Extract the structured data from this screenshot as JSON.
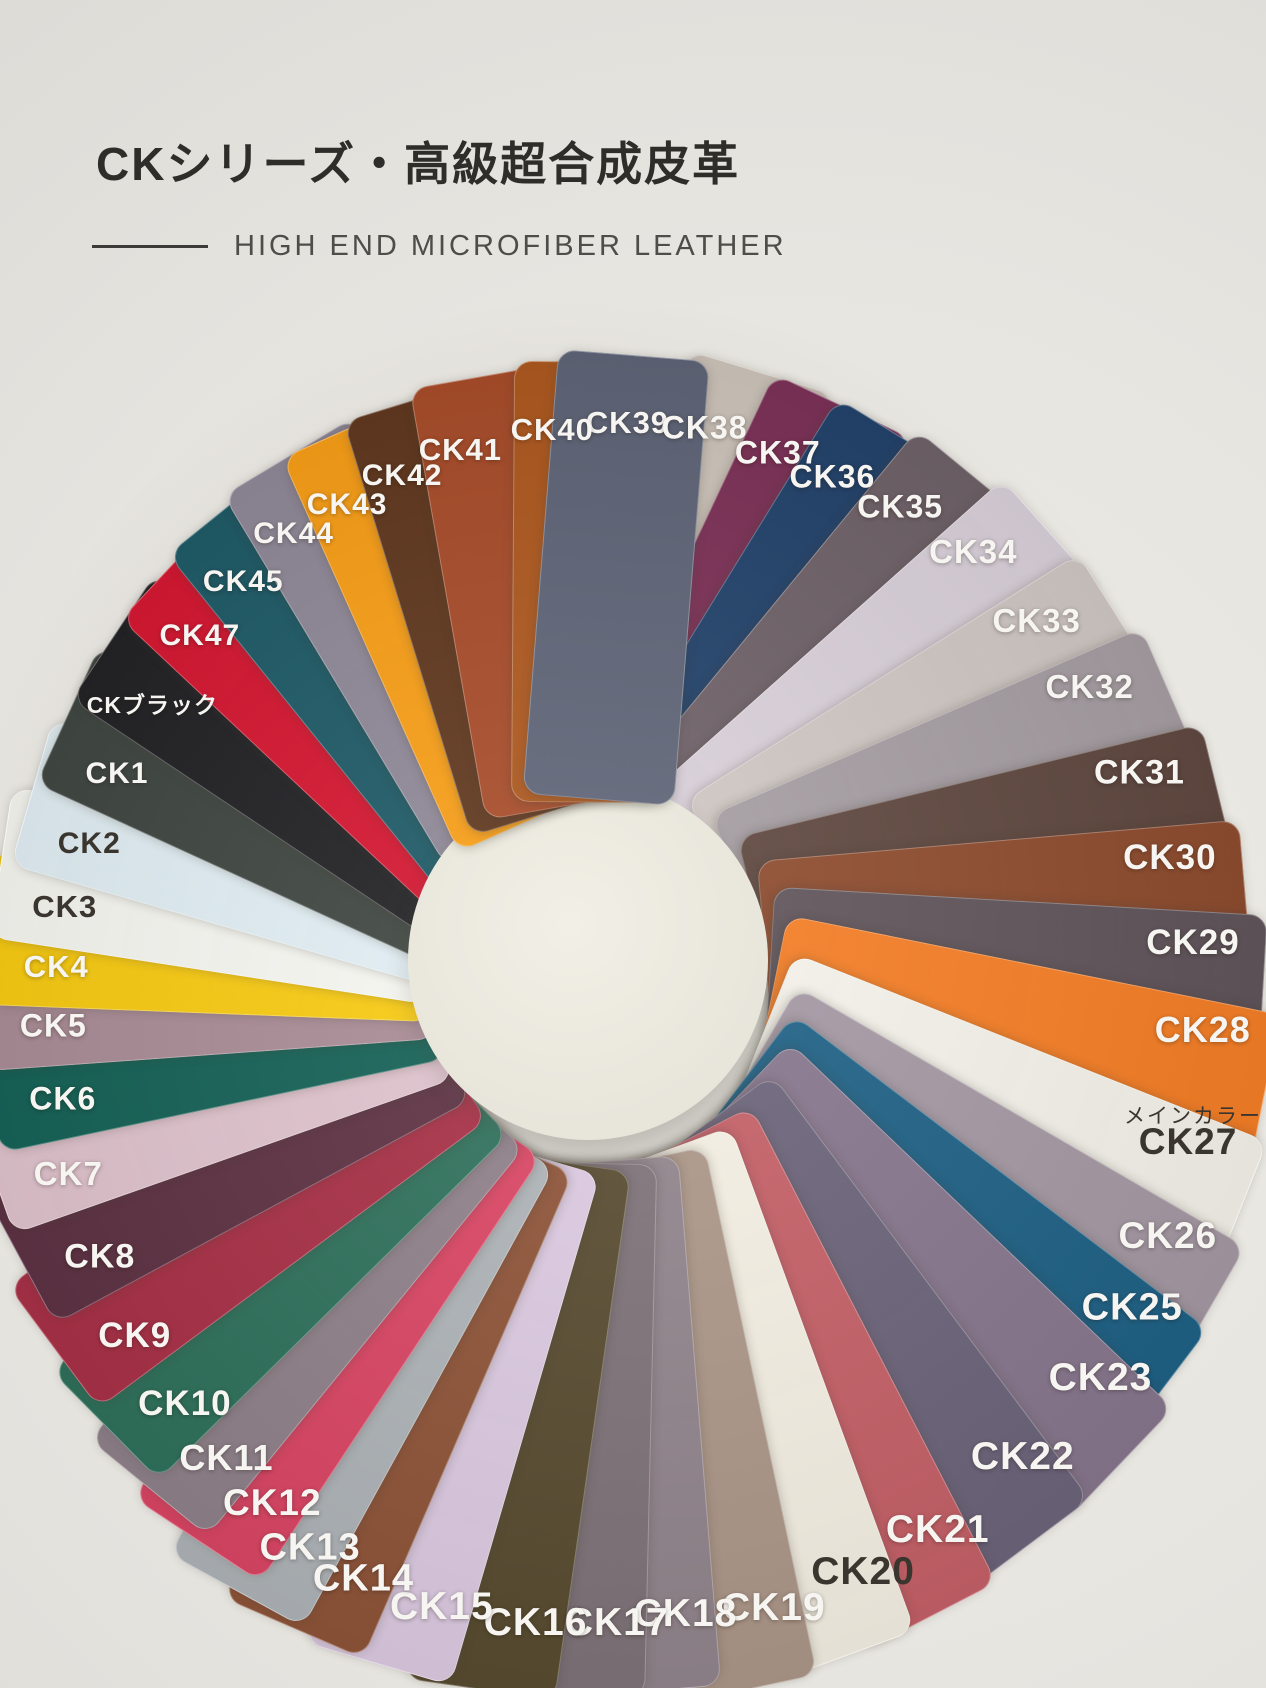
{
  "header": {
    "title": "CKシリーズ・高級超合成皮革",
    "subtitle": "HIGH END MICROFIBER LEATHER"
  },
  "fan": {
    "main_color_tag": {
      "text": "メインカラー",
      "angle": 105.2,
      "radius": 630
    },
    "swatches": [
      {
        "label": "CK39",
        "color": "#5e6476",
        "angle": 4.6,
        "radius": 529
      },
      {
        "label": "CK38",
        "color": "#cbc2b8",
        "angle": 12.9,
        "radius": 536
      },
      {
        "label": "CK37",
        "color": "#7b3156",
        "angle": 21.2,
        "radius": 533
      },
      {
        "label": "CK36",
        "color": "#23426a",
        "angle": 27.6,
        "radius": 534
      },
      {
        "label": "CK35",
        "color": "#6e6168",
        "angle": 35.4,
        "radius": 544
      },
      {
        "label": "CK34",
        "color": "#d7ced7",
        "angle": 44.3,
        "radius": 556
      },
      {
        "label": "CK33",
        "color": "#cdc5c1",
        "angle": 53.9,
        "radius": 559
      },
      {
        "label": "CK32",
        "color": "#a49ca1",
        "angle": 62.5,
        "radius": 569
      },
      {
        "label": "CK31",
        "color": "#5f4840",
        "angle": 72.3,
        "radius": 582
      },
      {
        "label": "CK30",
        "color": "#8d4c2f",
        "angle": 81.1,
        "radius": 592
      },
      {
        "label": "CK29",
        "color": "#5f545a",
        "angle": 89.3,
        "radius": 608
      },
      {
        "label": "CK28",
        "color": "#f27d26",
        "angle": 97.4,
        "radius": 623
      },
      {
        "label": "CK27",
        "color": "#f1efe7",
        "dark": true,
        "angle": 107.7,
        "radius": 633
      },
      {
        "label": "CK26",
        "color": "#a397a2",
        "angle": 116.1,
        "radius": 649
      },
      {
        "label": "CK25",
        "color": "#1f6084",
        "angle": 123.2,
        "radius": 654
      },
      {
        "label": "CK23",
        "color": "#86758c",
        "angle": 129.7,
        "radius": 670
      },
      {
        "label": "CK22",
        "color": "#6b6379",
        "angle": 139.2,
        "radius": 670
      },
      {
        "label": "CK21",
        "color": "#c25f66",
        "angle": 148.7,
        "radius": 679
      },
      {
        "label": "CK20",
        "color": "#f1ece0",
        "dark": true,
        "angle": 155.9,
        "radius": 681
      },
      {
        "label": "CK19",
        "color": "#aa9587",
        "angle": 164.0,
        "radius": 685
      },
      {
        "label": "CK18",
        "color": "#90838b",
        "angle": 171.4,
        "radius": 672
      },
      {
        "label": "CK17",
        "color": "#7c7177",
        "angle": 177.3,
        "radius": 674
      },
      {
        "label": "CK16",
        "color": "#574b30",
        "angle": 184.2,
        "radius": 675
      },
      {
        "label": "CK15",
        "color": "#d9c7de",
        "angle": 192.3,
        "radius": 672
      },
      {
        "label": "CK14",
        "color": "#8c5338",
        "angle": 199.4,
        "radius": 667
      },
      {
        "label": "CK13",
        "color": "#acb1b5",
        "angle": 204.7,
        "radius": 658
      },
      {
        "label": "CK12",
        "color": "#d74563",
        "angle": 209.5,
        "radius": 635
      },
      {
        "label": "CK11",
        "color": "#8d7f88",
        "angle": 215.2,
        "radius": 622
      },
      {
        "label": "CK10",
        "color": "#2f705b",
        "angle": 221.4,
        "radius": 605
      },
      {
        "label": "CK9",
        "color": "#a63046",
        "angle": 229.4,
        "radius": 593
      },
      {
        "label": "CK8",
        "color": "#5d3243",
        "angle": 237.7,
        "radius": 574
      },
      {
        "label": "CK7",
        "color": "#ddc1cb",
        "angle": 246.6,
        "radius": 563
      },
      {
        "label": "CK6",
        "color": "#166156",
        "angle": 254.1,
        "radius": 543
      },
      {
        "label": "CK5",
        "color": "#a88b95",
        "angle": 261.9,
        "radius": 537
      },
      {
        "label": "CK4",
        "color": "#f6c913",
        "angle": 268.2,
        "radius": 529
      },
      {
        "label": "CK3",
        "color": "#f4f4ef",
        "dark": true,
        "angle": 274.7,
        "radius": 522
      },
      {
        "label": "CK2",
        "color": "#dfecf1",
        "dark": true,
        "angle": 282.1,
        "radius": 507
      },
      {
        "label": "CK1",
        "color": "#404742",
        "angle": 290.6,
        "radius": 500
      },
      {
        "label": "CKブラック",
        "color": "#232326",
        "angle": 299.7,
        "radius": 498
      },
      {
        "label": "CK47",
        "color": "#d31832",
        "angle": 309.2,
        "radius": 497
      },
      {
        "label": "CK45",
        "color": "#1f5a66",
        "angle": 317.1,
        "radius": 502
      },
      {
        "label": "CK44",
        "color": "#8e8796",
        "angle": 325.0,
        "radius": 508
      },
      {
        "label": "CK43",
        "color": "#f59d18",
        "angle": 331.9,
        "radius": 505
      },
      {
        "label": "CK42",
        "color": "#60381f",
        "angle": 338.9,
        "radius": 508
      },
      {
        "label": "CK41",
        "color": "#a64c2a",
        "angle": 346.0,
        "radius": 515
      },
      {
        "label": "CK40",
        "color": "#ac581f",
        "angle": 356.4,
        "radius": 521
      }
    ]
  }
}
